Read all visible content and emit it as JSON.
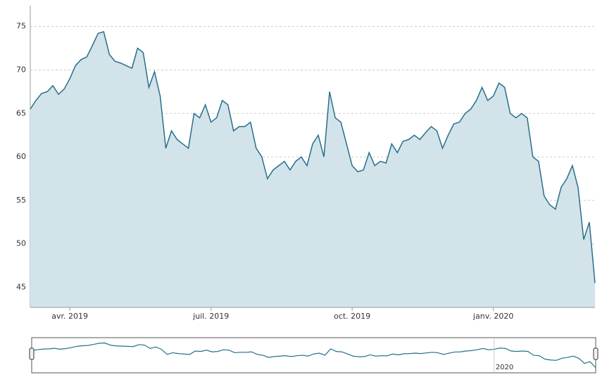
{
  "chart_data": {
    "type": "area",
    "categories": [
      null,
      null,
      null,
      null,
      null,
      null,
      null,
      "avr. 2019",
      null,
      null,
      null,
      null,
      null,
      null,
      null,
      null,
      null,
      null,
      null,
      null,
      null,
      null,
      null,
      null,
      null,
      null,
      null,
      null,
      null,
      null,
      null,
      null,
      "juil. 2019",
      null,
      null,
      null,
      null,
      null,
      null,
      null,
      null,
      null,
      null,
      null,
      null,
      null,
      null,
      null,
      null,
      null,
      null,
      null,
      null,
      null,
      null,
      null,
      null,
      "oct. 2019",
      null,
      null,
      null,
      null,
      null,
      null,
      null,
      null,
      null,
      null,
      null,
      null,
      null,
      null,
      null,
      null,
      null,
      null,
      null,
      null,
      null,
      null,
      null,
      null,
      "janv. 2020",
      null,
      null,
      null,
      null,
      null,
      null,
      null,
      null,
      null,
      null,
      null,
      null,
      null,
      null,
      null,
      null,
      null,
      null
    ],
    "values": [
      65.5,
      66.5,
      67.3,
      67.5,
      68.2,
      67.2,
      67.8,
      69.0,
      70.5,
      71.2,
      71.5,
      72.8,
      74.2,
      74.4,
      71.8,
      71.0,
      70.8,
      70.5,
      70.2,
      72.5,
      72.0,
      68.0,
      69.8,
      67.0,
      61.0,
      63.0,
      62.0,
      61.5,
      61.0,
      65.0,
      64.5,
      66.0,
      64.0,
      64.5,
      66.5,
      66.0,
      63.0,
      63.5,
      63.5,
      64.0,
      61.0,
      60.0,
      57.5,
      58.5,
      59.0,
      59.5,
      58.5,
      59.5,
      60.0,
      59.0,
      61.5,
      62.5,
      60.0,
      67.5,
      64.5,
      64.0,
      61.5,
      59.0,
      58.3,
      58.5,
      60.5,
      59.0,
      59.5,
      59.3,
      61.5,
      60.5,
      61.8,
      62.0,
      62.5,
      62.0,
      62.8,
      63.5,
      63.0,
      61.0,
      62.5,
      63.8,
      64.0,
      65.0,
      65.5,
      66.5,
      68.0,
      66.5,
      67.0,
      68.5,
      68.0,
      65.0,
      64.5,
      65.0,
      64.5,
      60.0,
      59.5,
      55.5,
      54.5,
      54.0,
      56.5,
      57.5,
      59.0,
      56.5,
      50.5,
      52.5,
      45.5
    ],
    "color": "#276f8c",
    "fill": "#d3e3ea",
    "ylim": [
      42.7,
      77.4
    ],
    "yticks": [
      45,
      50,
      55,
      60,
      65,
      70,
      75
    ],
    "grid": true,
    "navigator": {
      "label": "2020",
      "index": 82
    }
  }
}
